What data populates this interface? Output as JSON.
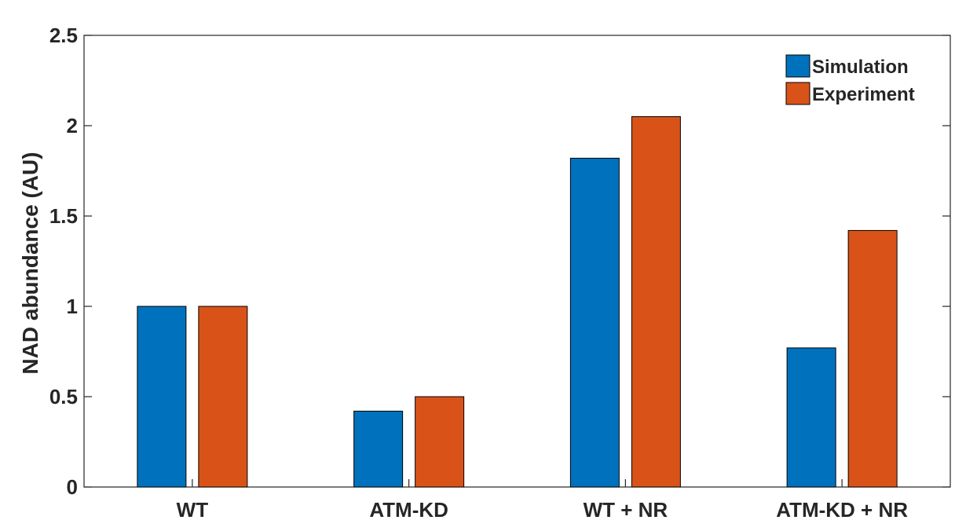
{
  "chart_data": {
    "type": "bar",
    "title": "",
    "xlabel": "",
    "ylabel": "NAD abundance (AU)",
    "ylim": [
      0,
      2.5
    ],
    "yticks": [
      "0",
      "0.5",
      "1",
      "1.5",
      "2",
      "2.5"
    ],
    "categories": [
      "WT",
      "ATM-KD",
      "WT + NR",
      "ATM-KD + NR"
    ],
    "series": [
      {
        "name": "Simulation",
        "color": "#0072BD",
        "values": [
          1.0,
          0.42,
          1.82,
          0.77
        ]
      },
      {
        "name": "Experiment",
        "color": "#D95319",
        "values": [
          1.0,
          0.5,
          2.05,
          1.42
        ]
      }
    ],
    "grid": false,
    "legend_position": "top-right"
  }
}
